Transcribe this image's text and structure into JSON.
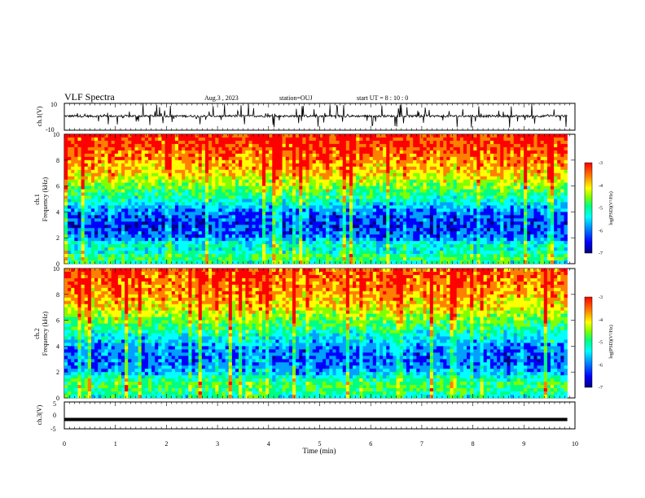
{
  "header": {
    "title": "VLF Spectra",
    "date": "Aug.3  , 2023",
    "station": "station=OUJ",
    "start": "start  UT  =   8  : 10 : 0"
  },
  "chart_data": [
    {
      "type": "line",
      "panel": "ch1-waveform",
      "ylabel": "ch.1(V)",
      "ylim": [
        -10,
        10
      ],
      "ytick_labels": [
        "10",
        "-10"
      ],
      "x_range_min": [
        0,
        9.85
      ],
      "baseline_v": 0.5,
      "spike_range_v": [
        -8,
        10
      ]
    },
    {
      "type": "heatmap",
      "panel": "ch1-spectrogram",
      "ylabel": "Frequency (kHz)",
      "channel_label": "ch.1",
      "ylim": [
        0,
        10
      ],
      "yticks": [
        0,
        2,
        4,
        6,
        8,
        10
      ],
      "x_range_min": [
        0,
        9.85
      ],
      "z_label": "log(PSD)(V²/Hz)",
      "z_range": [
        -7,
        -3
      ],
      "z_ticks": [
        "-3",
        "-4",
        "-5",
        "-6",
        "-7"
      ],
      "typical_log_psd_by_freq_khz": [
        [
          0.0,
          -5.2
        ],
        [
          0.5,
          -4.8
        ],
        [
          1.0,
          -5.4
        ],
        [
          1.5,
          -5.3
        ],
        [
          2.0,
          -6.0
        ],
        [
          3.0,
          -6.3
        ],
        [
          4.0,
          -6.0
        ],
        [
          5.0,
          -5.2
        ],
        [
          6.0,
          -4.6
        ],
        [
          7.0,
          -4.0
        ],
        [
          8.0,
          -3.7
        ],
        [
          9.0,
          -3.4
        ],
        [
          10.0,
          -3.3
        ]
      ]
    },
    {
      "type": "heatmap",
      "panel": "ch2-spectrogram",
      "ylabel": "Frequency (kHz)",
      "channel_label": "ch.2",
      "ylim": [
        0,
        10
      ],
      "yticks": [
        0,
        2,
        4,
        6,
        8,
        10
      ],
      "x_range_min": [
        0,
        9.85
      ],
      "z_label": "log(PSD)(V²/Hz)",
      "z_range": [
        -7,
        -3
      ],
      "z_ticks": [
        "-3",
        "-4",
        "-5",
        "-6",
        "-7"
      ],
      "typical_log_psd_by_freq_khz": [
        [
          0.0,
          -5.3
        ],
        [
          0.5,
          -5.0
        ],
        [
          1.0,
          -4.9
        ],
        [
          1.5,
          -5.2
        ],
        [
          2.0,
          -5.8
        ],
        [
          3.0,
          -6.1
        ],
        [
          4.0,
          -5.9
        ],
        [
          5.0,
          -5.3
        ],
        [
          6.0,
          -4.7
        ],
        [
          7.0,
          -4.1
        ],
        [
          8.0,
          -3.8
        ],
        [
          9.0,
          -3.6
        ],
        [
          10.0,
          -3.5
        ]
      ]
    },
    {
      "type": "line",
      "panel": "ch3-waveform",
      "ylabel": "ch.3(V)",
      "ylim": [
        -5,
        5
      ],
      "ytick_labels": [
        "5",
        "0",
        "-5"
      ],
      "x_range_min": [
        0,
        9.85
      ],
      "level_v": -1.5
    }
  ],
  "xaxis": {
    "label": "Time (min)",
    "ticks": [
      "0",
      "1",
      "2",
      "3",
      "4",
      "5",
      "6",
      "7",
      "8",
      "9",
      "10"
    ]
  },
  "colors": {
    "scale": [
      "#000080",
      "#0000ff",
      "#00a0ff",
      "#00ffff",
      "#00ff80",
      "#80ff00",
      "#ffff00",
      "#ff8000",
      "#ff0000"
    ]
  }
}
